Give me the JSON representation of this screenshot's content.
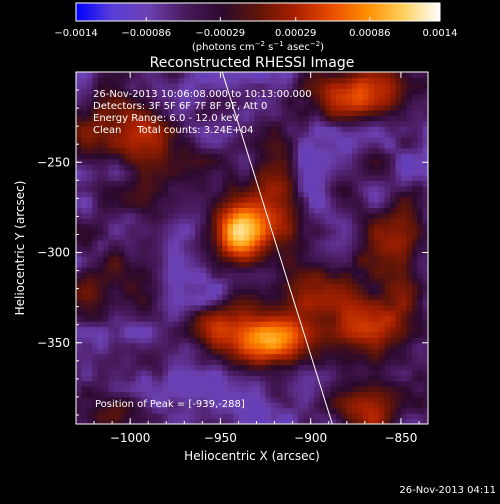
{
  "chart_data": {
    "type": "heatmap",
    "title": "Reconstructed RHESSI Image",
    "xlabel": "Heliocentric X (arcsec)",
    "ylabel": "Heliocentric Y (arcsec)",
    "x_range": [
      -1030,
      -835
    ],
    "y_range": [
      -395,
      -200
    ],
    "x_ticks": [
      -1000,
      -950,
      -900,
      -850
    ],
    "x_tick_labels": [
      "−1000",
      "−950",
      "−900",
      "−850"
    ],
    "y_ticks": [
      -250,
      -300,
      -350
    ],
    "y_tick_labels": [
      "−250",
      "−300",
      "−350"
    ],
    "colorbar": {
      "range": [
        -0.0014,
        0.0014
      ],
      "ticks": [
        -0.0014,
        -0.00086,
        -0.00029,
        0.00029,
        0.00086,
        0.0014
      ],
      "tick_labels": [
        "−0.0014",
        "−0.00086",
        "−0.00029",
        "0.00029",
        "0.00086",
        "0.0014"
      ],
      "unit_prefix": "(photons cm",
      "unit_exp1": "−2",
      "unit_mid": " s",
      "unit_exp2": "−1",
      "unit_mid2": " asec",
      "unit_exp3": "−2",
      "unit_suffix": ")",
      "colors": [
        "#0000ff",
        "#5a3ed8",
        "#6b40b0",
        "#4a1a5e",
        "#2b0a2e",
        "#5e1408",
        "#a82000",
        "#e84a00",
        "#ff8f00",
        "#ffd060",
        "#ffffff"
      ]
    },
    "annotations": [
      "26-Nov-2013 10:06:08.000 to 10:13:00.000",
      "Detectors: 3F 5F 6F 7F 8F 9F, Att 0",
      "Energy Range: 6.0 - 12.0 keV",
      "Clean     Total counts: 3.24E+04"
    ],
    "peak_label": "Position of Peak = [-939,-288]",
    "peak": [
      -939,
      -288
    ],
    "secondary_source": [
      -922,
      -348
    ],
    "limb_line": [
      [
        -949,
        -200
      ],
      [
        -888,
        -395
      ]
    ],
    "timestamp": "26-Nov-2013 04:11"
  }
}
